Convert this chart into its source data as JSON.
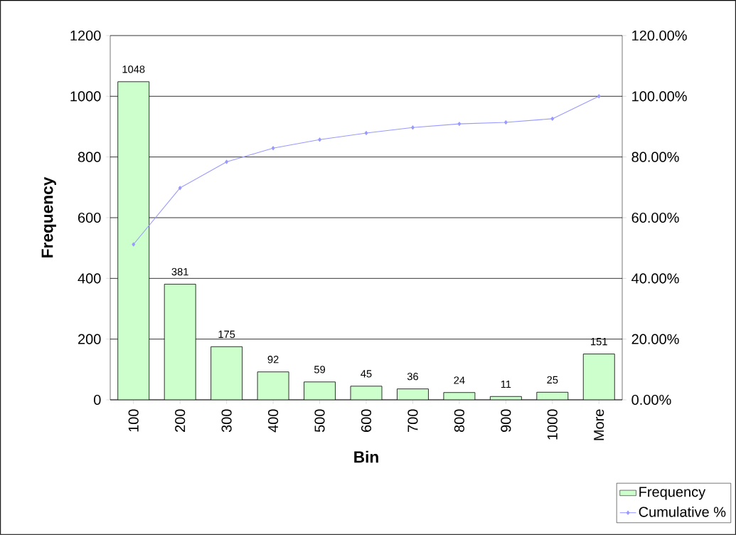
{
  "chart_data": {
    "type": "bar",
    "xlabel": "Bin",
    "ylabel": "Frequency",
    "categories": [
      "100",
      "200",
      "300",
      "400",
      "500",
      "600",
      "700",
      "800",
      "900",
      "1000",
      "More"
    ],
    "series": [
      {
        "name": "Frequency",
        "type": "bar",
        "color": "#ccffcc",
        "values": [
          1048,
          381,
          175,
          92,
          59,
          45,
          36,
          24,
          11,
          25,
          151
        ],
        "value_labels": [
          "1048",
          "381",
          "175",
          "92",
          "59",
          "45",
          "36",
          "24",
          "11",
          "25",
          "151"
        ]
      },
      {
        "name": "Cumulative %",
        "type": "line",
        "axis": "y2",
        "color": "#9999ff",
        "values": [
          51.2,
          69.8,
          78.4,
          82.9,
          85.7,
          87.9,
          89.7,
          90.9,
          91.4,
          92.6,
          100
        ]
      }
    ],
    "ylim": [
      0,
      1200
    ],
    "yticks": [
      0,
      200,
      400,
      600,
      800,
      1000,
      1200
    ],
    "y2lim": [
      0,
      120
    ],
    "y2ticks": [
      {
        "value": 0,
        "label": "0.00%"
      },
      {
        "value": 20,
        "label": "20.00%"
      },
      {
        "value": 40,
        "label": "40.00%"
      },
      {
        "value": 60,
        "label": "60.00%"
      },
      {
        "value": 80,
        "label": "80.00%"
      },
      {
        "value": 100,
        "label": "100.00%"
      },
      {
        "value": 120,
        "label": "120.00%"
      }
    ],
    "grid": "y",
    "legend": "bottom right",
    "marker": "diamond"
  }
}
